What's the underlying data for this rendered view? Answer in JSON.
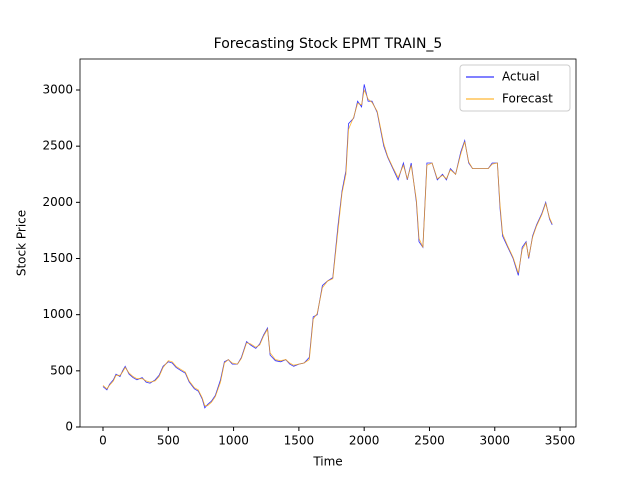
{
  "chart_data": {
    "type": "line",
    "title": "Forecasting Stock EPMT TRAIN_5",
    "xlabel": "Time",
    "ylabel": "Stock Price",
    "x": [
      0,
      30,
      50,
      80,
      100,
      130,
      150,
      170,
      200,
      230,
      260,
      300,
      330,
      360,
      400,
      430,
      460,
      500,
      530,
      560,
      600,
      630,
      660,
      700,
      730,
      760,
      780,
      800,
      830,
      860,
      900,
      930,
      960,
      990,
      1030,
      1060,
      1100,
      1130,
      1170,
      1200,
      1230,
      1260,
      1280,
      1320,
      1360,
      1400,
      1430,
      1460,
      1500,
      1540,
      1580,
      1610,
      1640,
      1680,
      1720,
      1760,
      1800,
      1830,
      1860,
      1880,
      1920,
      1950,
      1980,
      2000,
      2030,
      2060,
      2100,
      2150,
      2180,
      2220,
      2260,
      2300,
      2330,
      2360,
      2400,
      2420,
      2450,
      2480,
      2520,
      2560,
      2600,
      2630,
      2660,
      2700,
      2740,
      2770,
      2800,
      2830,
      2870,
      2950,
      2980,
      3020,
      3040,
      3060,
      3100,
      3140,
      3180,
      3210,
      3240,
      3260,
      3290,
      3320,
      3360,
      3390,
      3420,
      3440
    ],
    "series": [
      {
        "name": "Actual",
        "color": "#0000ff",
        "values": [
          360,
          330,
          380,
          420,
          470,
          450,
          500,
          540,
          470,
          440,
          420,
          440,
          400,
          390,
          420,
          460,
          540,
          580,
          570,
          530,
          500,
          480,
          400,
          340,
          320,
          250,
          170,
          200,
          230,
          280,
          420,
          580,
          600,
          560,
          560,
          620,
          760,
          730,
          700,
          740,
          820,
          880,
          640,
          590,
          580,
          600,
          560,
          540,
          560,
          570,
          620,
          980,
          1000,
          1260,
          1300,
          1330,
          1800,
          2100,
          2280,
          2700,
          2750,
          2900,
          2850,
          3050,
          2900,
          2900,
          2800,
          2500,
          2400,
          2300,
          2200,
          2350,
          2200,
          2350,
          2000,
          1650,
          1600,
          2350,
          2350,
          2200,
          2250,
          2200,
          2300,
          2250,
          2450,
          2550,
          2350,
          2300,
          2300,
          2300,
          2350,
          2350,
          1950,
          1700,
          1600,
          1500,
          1350,
          1600,
          1650,
          1500,
          1700,
          1800,
          1900,
          2000,
          1850,
          1800
        ]
      },
      {
        "name": "Forecast",
        "color": "#ffa500",
        "values": [
          370,
          340,
          370,
          410,
          460,
          460,
          490,
          530,
          480,
          450,
          430,
          430,
          410,
          400,
          410,
          450,
          530,
          590,
          580,
          540,
          510,
          490,
          410,
          350,
          330,
          260,
          190,
          190,
          220,
          270,
          400,
          570,
          600,
          570,
          560,
          610,
          750,
          740,
          710,
          730,
          810,
          870,
          660,
          600,
          590,
          600,
          570,
          550,
          560,
          570,
          600,
          960,
          1010,
          1240,
          1300,
          1320,
          1760,
          2080,
          2250,
          2650,
          2760,
          2880,
          2870,
          3000,
          2920,
          2890,
          2810,
          2520,
          2410,
          2310,
          2220,
          2330,
          2210,
          2330,
          2020,
          1680,
          1600,
          2330,
          2350,
          2210,
          2240,
          2210,
          2290,
          2250,
          2430,
          2540,
          2360,
          2300,
          2300,
          2300,
          2340,
          2350,
          1980,
          1720,
          1610,
          1510,
          1370,
          1580,
          1640,
          1510,
          1690,
          1790,
          1890,
          1990,
          1860,
          1810
        ]
      }
    ],
    "xlim": [
      -176,
      3622
    ],
    "ylim": [
      0,
      3276
    ],
    "xticks": [
      0,
      500,
      1000,
      1500,
      2000,
      2500,
      3000,
      3500
    ],
    "yticks": [
      0,
      500,
      1000,
      1500,
      2000,
      2500,
      3000
    ],
    "legend": "upper right"
  }
}
